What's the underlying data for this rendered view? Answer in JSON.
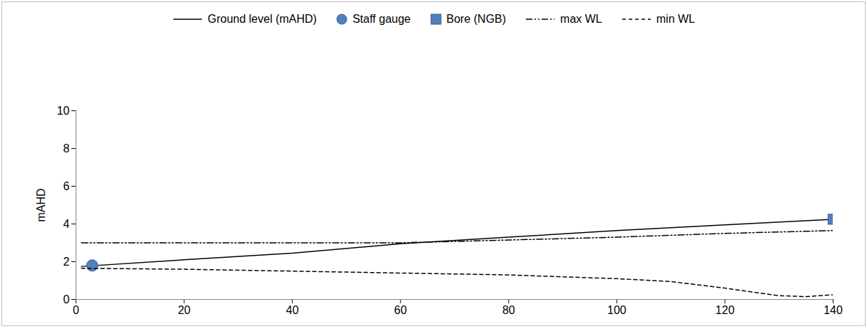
{
  "chart_data": {
    "type": "line",
    "ylabel": "mAHD",
    "xlim": [
      0,
      140
    ],
    "xticks": [
      0,
      20,
      40,
      60,
      80,
      100,
      120,
      140
    ],
    "ylim": [
      0,
      10
    ],
    "yticks": [
      0,
      2,
      4,
      6,
      8,
      10
    ],
    "grid": false,
    "legend": "top",
    "series": [
      {
        "name": "Ground level (mAHD)",
        "type": "line",
        "color": "#000000",
        "line_style": "solid",
        "x": [
          1,
          20,
          40,
          60,
          80,
          100,
          120,
          140
        ],
        "values": [
          1.75,
          2.1,
          2.45,
          2.95,
          3.3,
          3.65,
          3.95,
          4.25
        ]
      },
      {
        "name": "Staff gauge",
        "type": "scatter",
        "color": "#4f81bd",
        "marker": "circle",
        "x": [
          3
        ],
        "values": [
          1.8
        ]
      },
      {
        "name": "Bore (NGB)",
        "type": "scatter",
        "color": "#4f81bd",
        "marker": "square",
        "x": [
          140
        ],
        "values": [
          4.25
        ]
      },
      {
        "name": "max WL",
        "type": "line",
        "color": "#000000",
        "line_style": "dashdot",
        "x": [
          1,
          20,
          40,
          60,
          80,
          100,
          120,
          140
        ],
        "values": [
          3.0,
          3.0,
          3.0,
          3.0,
          3.15,
          3.3,
          3.5,
          3.65
        ]
      },
      {
        "name": "min WL",
        "type": "line",
        "color": "#000000",
        "line_style": "dashed",
        "x": [
          1,
          20,
          40,
          60,
          80,
          100,
          110,
          120,
          130,
          135,
          140
        ],
        "values": [
          1.65,
          1.6,
          1.5,
          1.4,
          1.3,
          1.1,
          0.95,
          0.6,
          0.2,
          0.15,
          0.25
        ]
      }
    ]
  }
}
